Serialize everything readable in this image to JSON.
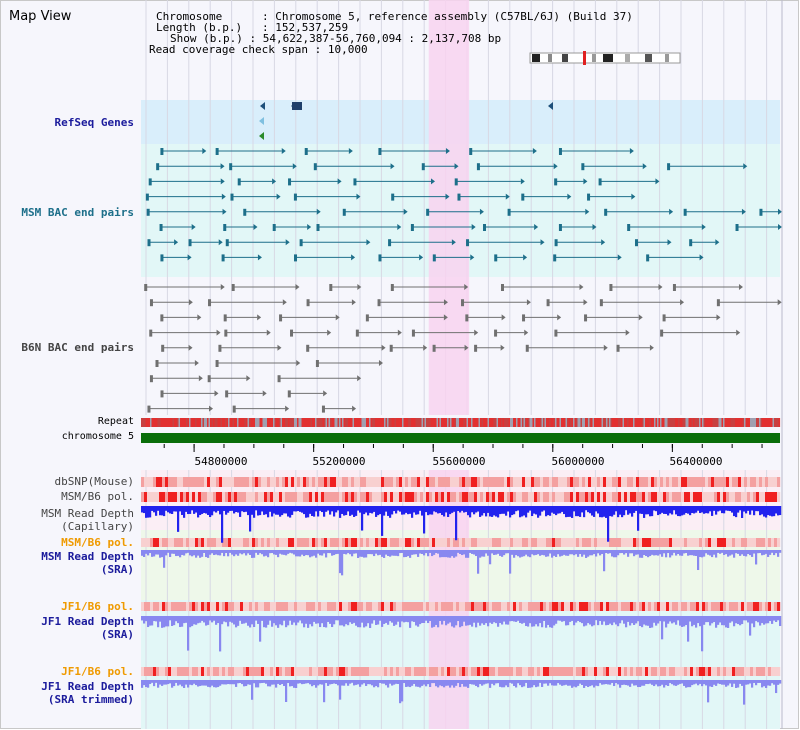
{
  "app": {
    "title": "Map View"
  },
  "info": {
    "chromosome_label": "Chromosome",
    "chromosome_value": "Chromosome 5, reference assembly (C57BL/6J) (Build 37)",
    "length_label": "Length (b.p.)",
    "length_value": "152,537,259",
    "show_label": "Show (b.p.)",
    "show_value": "54,622,387-56,760,094 : 2,137,708 bp",
    "coverage_label": "Read coverage check span",
    "coverage_value": "10,000"
  },
  "tracks": {
    "refseq": "RefSeq Genes",
    "msm_bac": "MSM BAC end pairs",
    "b6n_bac": "B6N BAC end pairs",
    "repeat": "Repeat",
    "chromosome": "chromosome 5",
    "dbsnp": "dbSNP(Mouse)",
    "msm_b6_pol": "MSM/B6 pol.",
    "msm_depth_cap_1": "MSM Read Depth",
    "msm_depth_cap_2": "(Capillary)",
    "msm_b6_pol_2": "MSM/B6 pol.",
    "msm_depth_sra_1": "MSM Read Depth",
    "msm_depth_sra_2": "(SRA)",
    "jf1_b6_pol": "JF1/B6 pol.",
    "jf1_depth_sra_1": "JF1 Read Depth",
    "jf1_depth_sra_2": "(SRA)",
    "jf1_b6_pol_2": "JF1/B6 pol.",
    "jf1_depth_trim_1": "JF1 Read Depth",
    "jf1_depth_trim_2": "(SRA trimmed)"
  },
  "axis": {
    "ticks": [
      "54800000",
      "55200000",
      "55600000",
      "56000000",
      "56400000"
    ],
    "tick_values": [
      54800000,
      55200000,
      55600000,
      56000000,
      56400000
    ],
    "range": [
      54622387,
      56760094
    ],
    "highlight": [
      55585000,
      55720000
    ]
  },
  "colors": {
    "highlight": "#f8d4f0",
    "refseq_bg": "#d9eefb",
    "feature_teal": "#1d6f8a",
    "feature_grey": "#707070",
    "chromosome": "#0a6e0a",
    "depth_blue": "#2222ee",
    "depth_light": "#8888f0",
    "pol_red": "#f02020",
    "pol_pink": "#f4a0a0",
    "label_navy": "#1b1b9c",
    "label_orange": "#ef9a00"
  }
}
